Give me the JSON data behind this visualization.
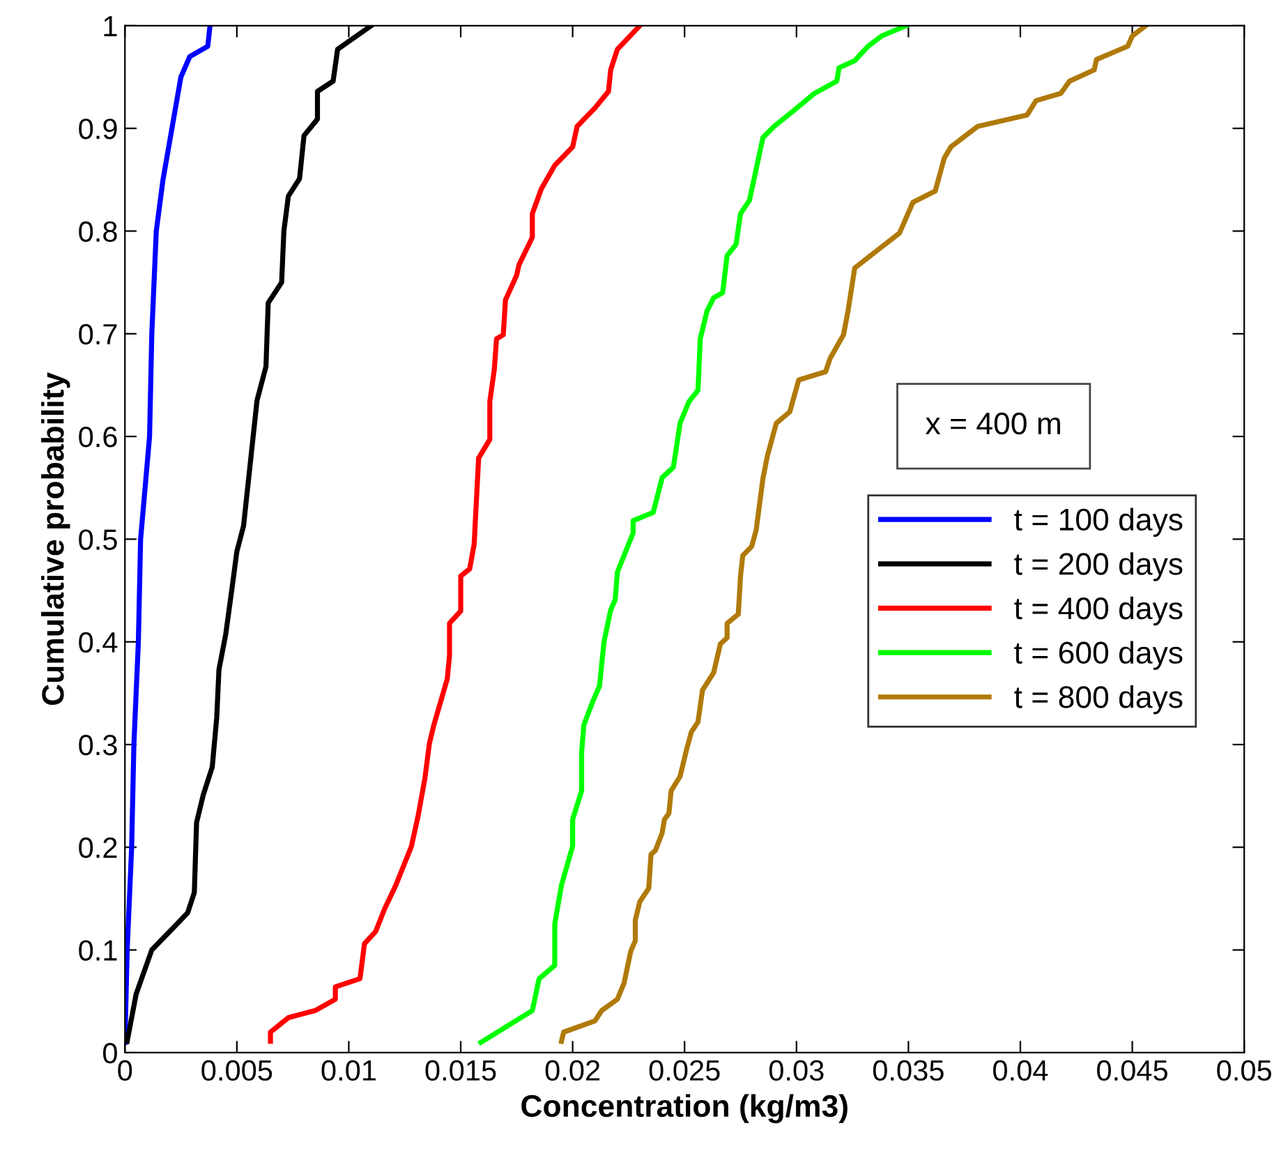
{
  "chart_data": {
    "type": "line",
    "xlabel": "Concentration (kg/m3)",
    "ylabel": "Cumulative probability",
    "xlim": [
      0,
      0.05
    ],
    "xticks": [
      0,
      0.005,
      0.01,
      0.015,
      0.02,
      0.025,
      0.03,
      0.035,
      0.04,
      0.045,
      0.05
    ],
    "ylim": [
      0,
      1
    ],
    "yticks": [
      0,
      0.1,
      0.2,
      0.3,
      0.4,
      0.5,
      0.6,
      0.7,
      0.8,
      0.9,
      1
    ],
    "grid": false,
    "legend": "right",
    "marker": "none",
    "line_style": "solid",
    "annotations": [
      "x = 400 m"
    ],
    "series": [
      {
        "name": "t = 100 days",
        "color": "#0000ff",
        "x": [
          0,
          0.0001,
          0.0003,
          0.0004,
          0.0006,
          0.0007,
          0.0011,
          0.0012,
          0.0014,
          0.0017,
          0.0021,
          0.0025,
          0.0029,
          0.0037,
          0.0038
        ],
        "values": [
          0.01,
          0.1,
          0.2,
          0.3,
          0.4,
          0.5,
          0.6,
          0.7,
          0.8,
          0.85,
          0.9,
          0.95,
          0.97,
          0.98,
          1.0
        ]
      },
      {
        "name": "t = 200 days",
        "color": "#000000",
        "x": [
          0.0001,
          0.0005,
          0.0012,
          0.0028,
          0.0031,
          0.0032,
          0.0035,
          0.0039,
          0.0041,
          0.0042,
          0.0045,
          0.0048,
          0.005,
          0.0053,
          0.0059,
          0.0063,
          0.0064,
          0.007,
          0.0071,
          0.0073,
          0.0078,
          0.008,
          0.0086,
          0.0086,
          0.0093,
          0.0095,
          0.011
        ],
        "values": [
          0.011,
          0.057,
          0.1,
          0.136,
          0.156,
          0.224,
          0.251,
          0.278,
          0.326,
          0.373,
          0.407,
          0.455,
          0.488,
          0.513,
          0.635,
          0.668,
          0.73,
          0.75,
          0.8,
          0.834,
          0.851,
          0.893,
          0.909,
          0.936,
          0.946,
          0.977,
          1.0
        ]
      },
      {
        "name": "t = 400 days",
        "color": "#ff0000",
        "x": [
          0.0065,
          0.0065,
          0.0073,
          0.0085,
          0.0094,
          0.0094,
          0.0105,
          0.0107,
          0.0112,
          0.0116,
          0.0121,
          0.0128,
          0.0131,
          0.0134,
          0.0136,
          0.0138,
          0.0144,
          0.0145,
          0.0145,
          0.015,
          0.015,
          0.0154,
          0.0156,
          0.0158,
          0.0163,
          0.0163,
          0.0165,
          0.0166,
          0.0169,
          0.017,
          0.0175,
          0.0176,
          0.0182,
          0.0182,
          0.0186,
          0.0192,
          0.02,
          0.0202,
          0.021,
          0.0216,
          0.0217,
          0.022,
          0.023
        ],
        "values": [
          0.011,
          0.02,
          0.034,
          0.041,
          0.052,
          0.064,
          0.072,
          0.106,
          0.118,
          0.14,
          0.163,
          0.201,
          0.231,
          0.267,
          0.301,
          0.319,
          0.364,
          0.387,
          0.418,
          0.43,
          0.464,
          0.471,
          0.495,
          0.579,
          0.597,
          0.634,
          0.665,
          0.695,
          0.699,
          0.733,
          0.757,
          0.767,
          0.794,
          0.817,
          0.841,
          0.864,
          0.882,
          0.902,
          0.92,
          0.936,
          0.957,
          0.977,
          1.0
        ]
      },
      {
        "name": "t = 600 days",
        "color": "#00ff00",
        "x": [
          0.0159,
          0.0182,
          0.0185,
          0.0192,
          0.0192,
          0.0195,
          0.02,
          0.02,
          0.0204,
          0.0204,
          0.0205,
          0.0209,
          0.0212,
          0.0214,
          0.0217,
          0.0219,
          0.022,
          0.0227,
          0.0227,
          0.0236,
          0.024,
          0.0245,
          0.0248,
          0.0252,
          0.0256,
          0.0257,
          0.026,
          0.0263,
          0.0267,
          0.0269,
          0.0273,
          0.0275,
          0.0279,
          0.0285,
          0.029,
          0.0298,
          0.0308,
          0.0318,
          0.0319,
          0.0326,
          0.0332,
          0.0338,
          0.0349
        ],
        "values": [
          0.01,
          0.041,
          0.072,
          0.085,
          0.125,
          0.163,
          0.201,
          0.227,
          0.255,
          0.292,
          0.319,
          0.342,
          0.357,
          0.4,
          0.431,
          0.441,
          0.468,
          0.506,
          0.518,
          0.526,
          0.56,
          0.57,
          0.613,
          0.634,
          0.645,
          0.695,
          0.722,
          0.735,
          0.74,
          0.776,
          0.787,
          0.817,
          0.83,
          0.891,
          0.902,
          0.916,
          0.934,
          0.946,
          0.959,
          0.966,
          0.98,
          0.99,
          1.0
        ]
      },
      {
        "name": "t = 800 days",
        "color": "#b07a0a",
        "x": [
          0.0195,
          0.0196,
          0.021,
          0.0213,
          0.022,
          0.0223,
          0.0226,
          0.0228,
          0.0228,
          0.023,
          0.0234,
          0.0235,
          0.0237,
          0.024,
          0.0241,
          0.0243,
          0.0244,
          0.0248,
          0.0251,
          0.0253,
          0.0256,
          0.0258,
          0.0263,
          0.0266,
          0.0269,
          0.0269,
          0.0274,
          0.0275,
          0.0276,
          0.028,
          0.0282,
          0.0285,
          0.0287,
          0.0291,
          0.0297,
          0.0301,
          0.0313,
          0.0315,
          0.0321,
          0.0323,
          0.0326,
          0.0333,
          0.0346,
          0.0352,
          0.0362,
          0.0366,
          0.0369,
          0.0381,
          0.0403,
          0.0407,
          0.0418,
          0.0422,
          0.0433,
          0.0434,
          0.0448,
          0.045,
          0.0456
        ],
        "values": [
          0.011,
          0.02,
          0.031,
          0.041,
          0.052,
          0.068,
          0.099,
          0.109,
          0.129,
          0.147,
          0.16,
          0.193,
          0.197,
          0.214,
          0.227,
          0.233,
          0.255,
          0.269,
          0.296,
          0.312,
          0.322,
          0.353,
          0.37,
          0.398,
          0.404,
          0.418,
          0.427,
          0.464,
          0.484,
          0.493,
          0.509,
          0.559,
          0.581,
          0.613,
          0.624,
          0.655,
          0.663,
          0.676,
          0.699,
          0.722,
          0.764,
          0.776,
          0.798,
          0.828,
          0.839,
          0.871,
          0.882,
          0.902,
          0.913,
          0.927,
          0.934,
          0.946,
          0.957,
          0.967,
          0.98,
          0.99,
          1.0
        ]
      }
    ]
  }
}
